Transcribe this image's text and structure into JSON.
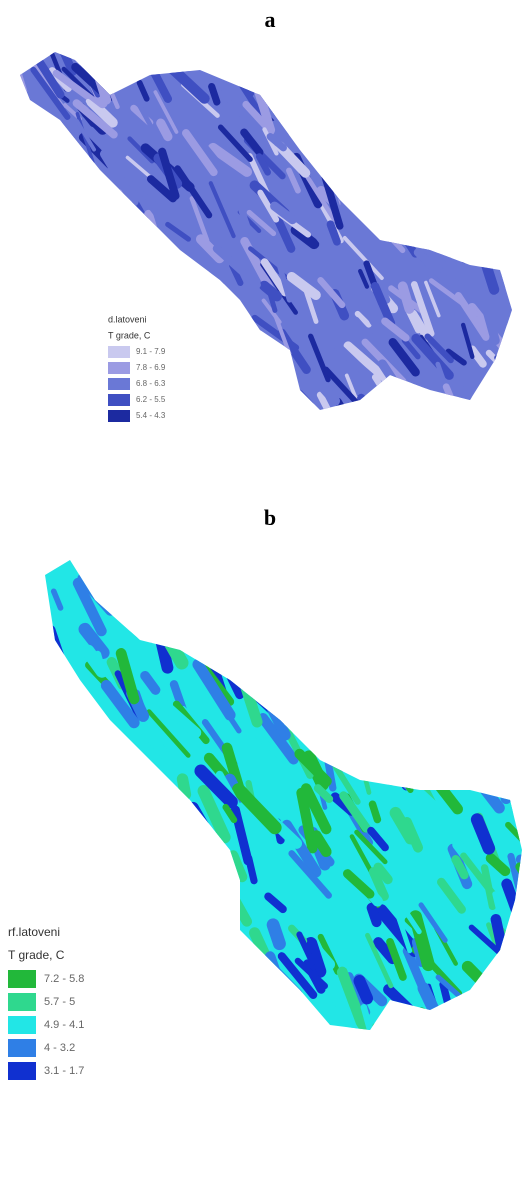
{
  "panels": [
    {
      "label": "a",
      "legend": {
        "title": "d.latoveni",
        "subtitle": "T grade, C",
        "items": [
          {
            "label": "9.1 - 7.9",
            "color": "#c9c9ef"
          },
          {
            "label": "7.8 - 6.9",
            "color": "#9b9be3"
          },
          {
            "label": "6.8 - 6.3",
            "color": "#6a78d6"
          },
          {
            "label": "6.2 - 5.5",
            "color": "#3f4fc2"
          },
          {
            "label": "5.4 - 4.3",
            "color": "#1c2aa0"
          }
        ]
      }
    },
    {
      "label": "b",
      "legend": {
        "title": "rf.latoveni",
        "subtitle": "T grade, C",
        "items": [
          {
            "label": "7.2 - 5.8",
            "color": "#22b83a"
          },
          {
            "label": "5.7 - 5",
            "color": "#2fd88e"
          },
          {
            "label": "4.9 - 4.1",
            "color": "#22e6e6"
          },
          {
            "label": "4 - 3.2",
            "color": "#2f7fe6"
          },
          {
            "label": "3.1 - 1.7",
            "color": "#1030d0"
          }
        ]
      }
    }
  ]
}
